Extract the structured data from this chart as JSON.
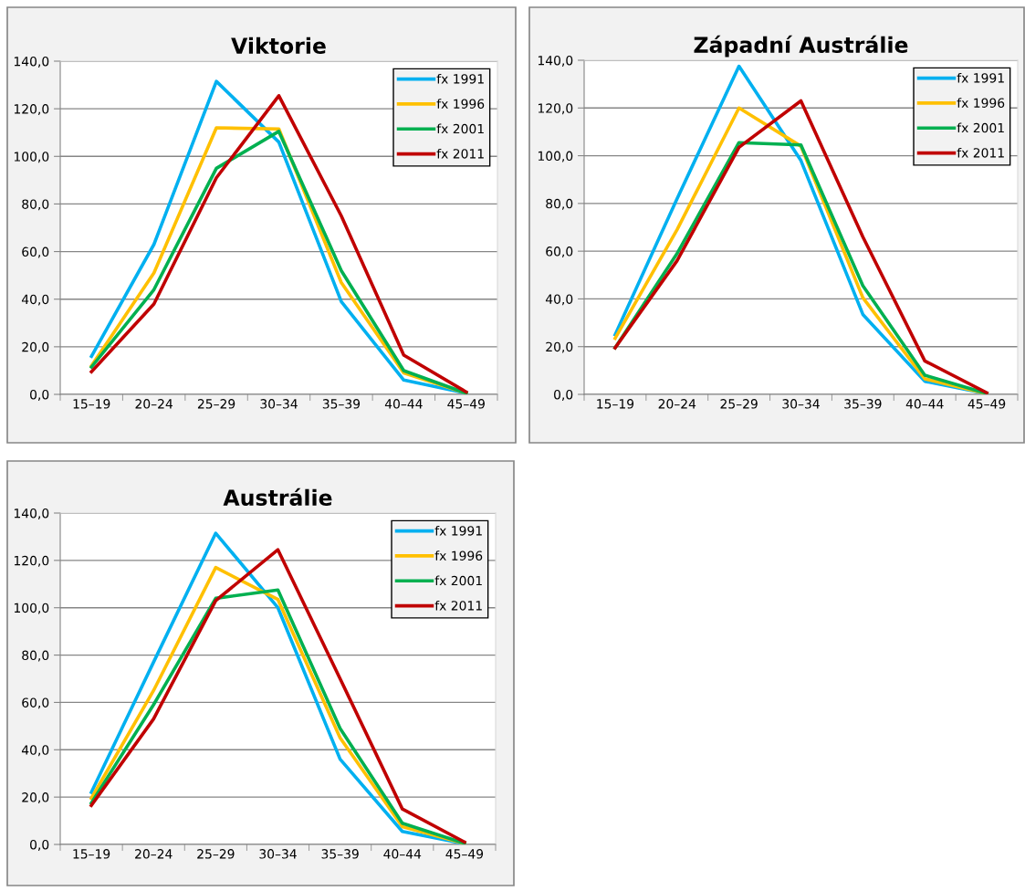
{
  "chart_data": [
    {
      "type": "line",
      "title": "Viktorie",
      "categories": [
        "15–19",
        "20–24",
        "25–29",
        "30–34",
        "35–39",
        "40–44",
        "45–49"
      ],
      "ylim": [
        0,
        140
      ],
      "yticks": [
        {
          "value": 0,
          "label": "0,0"
        },
        {
          "value": 20,
          "label": "20,0"
        },
        {
          "value": 40,
          "label": "40,0"
        },
        {
          "value": 60,
          "label": "60,0"
        },
        {
          "value": 80,
          "label": "80,0"
        },
        {
          "value": 100,
          "label": "100,0"
        },
        {
          "value": 120,
          "label": "120,0"
        },
        {
          "value": 140,
          "label": "140,0"
        }
      ],
      "grid": "y",
      "legend": "top right",
      "marker": "none",
      "line_style": "solid",
      "series": [
        {
          "name": "fx 1991",
          "color": "#00b0f0",
          "values": [
            16,
            63,
            131.5,
            106,
            39,
            6,
            0.5
          ]
        },
        {
          "name": "fx 1996",
          "color": "#ffc000",
          "values": [
            12,
            51,
            112,
            111.5,
            47,
            9,
            0.5
          ]
        },
        {
          "name": "fx 2001",
          "color": "#00b050",
          "values": [
            11.5,
            44,
            95,
            110.5,
            52,
            10,
            0.5
          ]
        },
        {
          "name": "fx 2011",
          "color": "#c00000",
          "values": [
            9.5,
            38,
            91,
            125.5,
            75,
            16.5,
            1
          ]
        }
      ]
    },
    {
      "type": "line",
      "title": "Západní Austrálie",
      "categories": [
        "15–19",
        "20–24",
        "25–29",
        "30–34",
        "35–39",
        "40–44",
        "45–49"
      ],
      "ylim": [
        0,
        140
      ],
      "yticks": [
        {
          "value": 0,
          "label": "0,0"
        },
        {
          "value": 20,
          "label": "20,0"
        },
        {
          "value": 40,
          "label": "40,0"
        },
        {
          "value": 60,
          "label": "60,0"
        },
        {
          "value": 80,
          "label": "80,0"
        },
        {
          "value": 100,
          "label": "100,0"
        },
        {
          "value": 120,
          "label": "120,0"
        },
        {
          "value": 140,
          "label": "140,0"
        }
      ],
      "grid": "y",
      "legend": "top right",
      "marker": "none",
      "line_style": "solid",
      "series": [
        {
          "name": "fx 1991",
          "color": "#00b0f0",
          "values": [
            25,
            82,
            137.5,
            98,
            33.5,
            5.5,
            0.3
          ]
        },
        {
          "name": "fx 1996",
          "color": "#ffc000",
          "values": [
            23.5,
            69,
            120,
            104,
            40.5,
            6.5,
            0.3
          ]
        },
        {
          "name": "fx 2001",
          "color": "#00b050",
          "values": [
            19.5,
            59,
            105.5,
            104.5,
            45.5,
            8,
            0.4
          ]
        },
        {
          "name": "fx 2011",
          "color": "#c00000",
          "values": [
            19.5,
            56,
            103.5,
            123,
            66,
            14,
            0.7
          ]
        }
      ]
    },
    {
      "type": "line",
      "title": "Austrálie",
      "categories": [
        "15–19",
        "20–24",
        "25–29",
        "30–34",
        "35–39",
        "40–44",
        "45–49"
      ],
      "ylim": [
        0,
        140
      ],
      "yticks": [
        {
          "value": 0,
          "label": "0,0"
        },
        {
          "value": 20,
          "label": "20,0"
        },
        {
          "value": 40,
          "label": "40,0"
        },
        {
          "value": 60,
          "label": "60,0"
        },
        {
          "value": 80,
          "label": "80,0"
        },
        {
          "value": 100,
          "label": "100,0"
        },
        {
          "value": 120,
          "label": "120,0"
        },
        {
          "value": 140,
          "label": "140,0"
        }
      ],
      "grid": "y",
      "legend": "top right",
      "marker": "none",
      "line_style": "solid",
      "series": [
        {
          "name": "fx 1991",
          "color": "#00b0f0",
          "values": [
            22,
            77,
            131.5,
            100,
            36,
            5.5,
            0.3
          ]
        },
        {
          "name": "fx 1996",
          "color": "#ffc000",
          "values": [
            19.5,
            65,
            117,
            103.5,
            45,
            7.5,
            0.4
          ]
        },
        {
          "name": "fx 2001",
          "color": "#00b050",
          "values": [
            17.5,
            59,
            104,
            107.5,
            49,
            9,
            0.5
          ]
        },
        {
          "name": "fx 2011",
          "color": "#c00000",
          "values": [
            16.5,
            53,
            103,
            124.5,
            70,
            15,
            1
          ]
        }
      ]
    }
  ]
}
